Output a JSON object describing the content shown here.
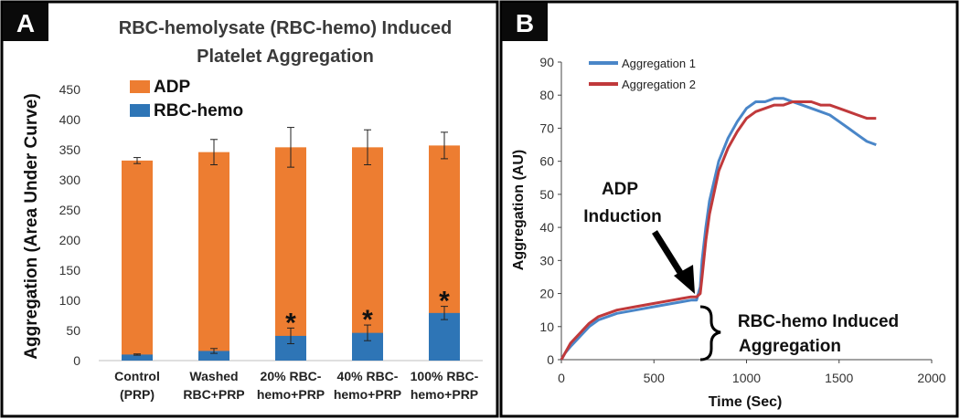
{
  "colors": {
    "adp": "#ED7D31",
    "rbc": "#2E75B6",
    "agg1": "#4A86C8",
    "agg2": "#C0393B"
  },
  "panel_a": {
    "badge": "A",
    "title_line1": "RBC-hemolysate (RBC-hemo) Induced",
    "title_line2": "Platelet Aggregation",
    "legend_adp": "ADP",
    "legend_rbc": "RBC-hemo",
    "significance_marker": "*"
  },
  "panel_b": {
    "badge": "B",
    "annot_adp_line1": "ADP",
    "annot_adp_line2": "Induction",
    "annot_rbc_line1": "RBC-hemo Induced",
    "annot_rbc_line2": "Aggregation"
  },
  "chart_data": [
    {
      "type": "bar",
      "stacked": true,
      "title": "RBC-hemolysate (RBC-hemo) Induced Platelet Aggregation",
      "ylabel": "Aggregation (Area Under Curve)",
      "xlabel": "",
      "ylim": [
        0,
        450
      ],
      "yticks": [
        0,
        50,
        100,
        150,
        200,
        250,
        300,
        350,
        400,
        450
      ],
      "categories": [
        [
          "Control",
          "(PRP)"
        ],
        [
          "Washed",
          "RBC+PRP"
        ],
        [
          "20% RBC-",
          "hemo+PRP"
        ],
        [
          "40% RBC-",
          "hemo+PRP"
        ],
        [
          "100% RBC-",
          "hemo+PRP"
        ]
      ],
      "series": [
        {
          "name": "RBC-hemo",
          "values": [
            10,
            16,
            41,
            46,
            79
          ],
          "errors": [
            1,
            4,
            13,
            13,
            11
          ]
        },
        {
          "name": "ADP",
          "totals": [
            332,
            346,
            354,
            354,
            357
          ],
          "errors": [
            5,
            21,
            33,
            29,
            22
          ]
        }
      ],
      "significant": [
        false,
        false,
        true,
        true,
        true
      ],
      "legend": [
        "ADP",
        "RBC-hemo"
      ]
    },
    {
      "type": "line",
      "ylabel": "Aggregation (AU)",
      "xlabel": "Time (Sec)",
      "xlim": [
        0,
        2000
      ],
      "ylim": [
        0,
        90
      ],
      "xticks": [
        0,
        500,
        1000,
        1500,
        2000
      ],
      "yticks": [
        0,
        10,
        20,
        30,
        40,
        50,
        60,
        70,
        80,
        90
      ],
      "series": [
        {
          "name": "Aggregation 1",
          "x": [
            0,
            20,
            50,
            100,
            150,
            200,
            300,
            400,
            500,
            600,
            650,
            700,
            730,
            750,
            760,
            780,
            800,
            850,
            900,
            950,
            1000,
            1050,
            1100,
            1150,
            1200,
            1250,
            1300,
            1350,
            1400,
            1450,
            1500,
            1550,
            1600,
            1650,
            1700
          ],
          "y": [
            0,
            2,
            4,
            7,
            10,
            12,
            14,
            15,
            16,
            17,
            17.5,
            18,
            18,
            22,
            30,
            40,
            48,
            60,
            67,
            72,
            76,
            78,
            78,
            79,
            79,
            78,
            77,
            76,
            75,
            74,
            72,
            70,
            68,
            66,
            65
          ]
        },
        {
          "name": "Aggregation 2",
          "x": [
            0,
            20,
            50,
            100,
            150,
            200,
            300,
            400,
            500,
            600,
            650,
            700,
            730,
            750,
            760,
            780,
            800,
            850,
            900,
            950,
            1000,
            1050,
            1100,
            1150,
            1200,
            1250,
            1300,
            1350,
            1400,
            1450,
            1500,
            1550,
            1600,
            1650,
            1700
          ],
          "y": [
            0,
            2,
            5,
            8,
            11,
            13,
            15,
            16,
            17,
            18,
            18.5,
            19,
            19,
            20,
            25,
            36,
            44,
            57,
            64,
            69,
            73,
            75,
            76,
            77,
            77,
            78,
            78,
            78,
            77,
            77,
            76,
            75,
            74,
            73,
            73
          ]
        }
      ],
      "legend": [
        "Aggregation 1",
        "Aggregation 2"
      ]
    }
  ]
}
